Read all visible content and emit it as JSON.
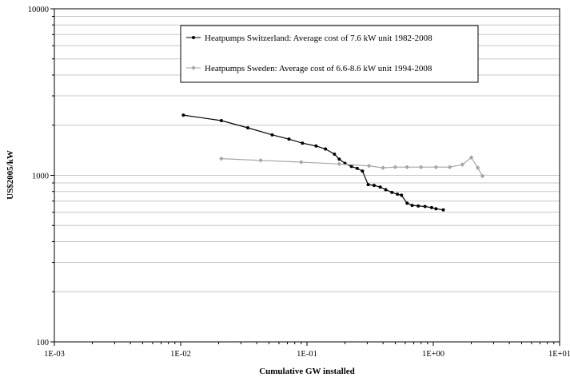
{
  "chart_data": {
    "type": "line",
    "xscale": "log",
    "yscale": "log",
    "xlim": [
      0.001,
      10
    ],
    "ylim": [
      100,
      10000
    ],
    "xlabel": "Cumulative GW installed",
    "ylabel": "US$2005/kW",
    "x_tick_labels": [
      "1E-03",
      "1E-02",
      "1E-01",
      "1E+00",
      "1E+01"
    ],
    "y_tick_labels": [
      "100",
      "1000",
      "10000"
    ],
    "grid": "horizontal-minor",
    "legend_position": "top-center",
    "series": [
      {
        "name": "Heatpumps Switzerland: Average cost of 7.6 kW unit 1982-2008",
        "color": "#000000",
        "points": [
          [
            0.0105,
            2300
          ],
          [
            0.021,
            2130
          ],
          [
            0.034,
            1930
          ],
          [
            0.053,
            1750
          ],
          [
            0.072,
            1650
          ],
          [
            0.092,
            1560
          ],
          [
            0.118,
            1500
          ],
          [
            0.14,
            1440
          ],
          [
            0.165,
            1340
          ],
          [
            0.18,
            1250
          ],
          [
            0.2,
            1180
          ],
          [
            0.225,
            1130
          ],
          [
            0.25,
            1100
          ],
          [
            0.275,
            1060
          ],
          [
            0.305,
            880
          ],
          [
            0.34,
            870
          ],
          [
            0.38,
            850
          ],
          [
            0.42,
            820
          ],
          [
            0.47,
            790
          ],
          [
            0.52,
            770
          ],
          [
            0.56,
            760
          ],
          [
            0.62,
            680
          ],
          [
            0.68,
            660
          ],
          [
            0.76,
            655
          ],
          [
            0.86,
            650
          ],
          [
            0.97,
            640
          ],
          [
            1.05,
            630
          ],
          [
            1.2,
            620
          ]
        ]
      },
      {
        "name": "Heatpumps Sweden: Average cost of 6.6-8.6 kW unit 1994-2008",
        "color": "#a6a6a6",
        "points": [
          [
            0.021,
            1260
          ],
          [
            0.043,
            1230
          ],
          [
            0.09,
            1200
          ],
          [
            0.18,
            1170
          ],
          [
            0.31,
            1140
          ],
          [
            0.4,
            1110
          ],
          [
            0.5,
            1120
          ],
          [
            0.62,
            1120
          ],
          [
            0.8,
            1120
          ],
          [
            1.05,
            1120
          ],
          [
            1.35,
            1120
          ],
          [
            1.7,
            1160
          ],
          [
            2.0,
            1280
          ],
          [
            2.25,
            1110
          ],
          [
            2.45,
            990
          ]
        ]
      }
    ]
  }
}
